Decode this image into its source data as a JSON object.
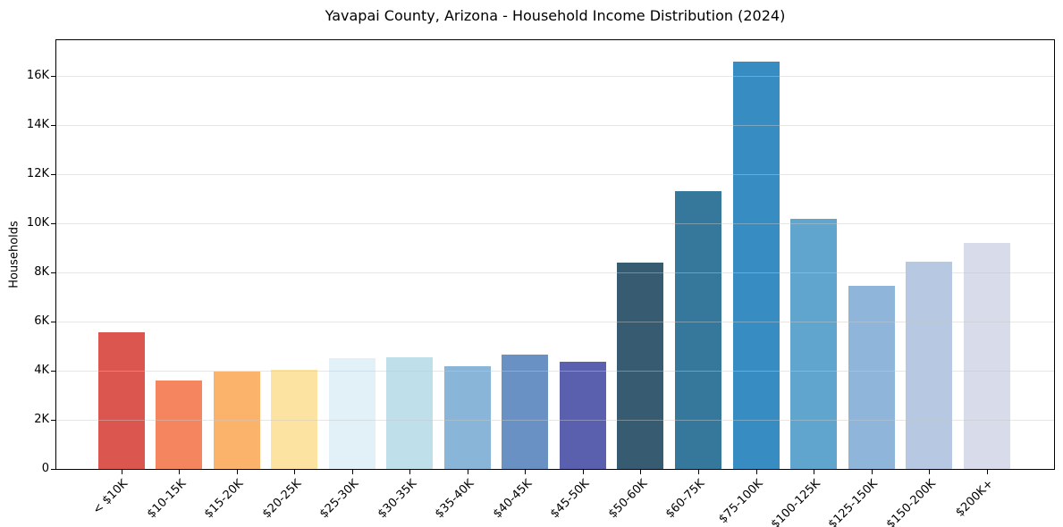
{
  "chart_data": {
    "type": "bar",
    "title": "Yavapai County, Arizona - Household Income Distribution (2024)",
    "xlabel": "",
    "ylabel": "Households",
    "categories": [
      "< $10K",
      "$10-15K",
      "$15-20K",
      "$20-25K",
      "$25-30K",
      "$30-35K",
      "$35-40K",
      "$40-45K",
      "$45-50K",
      "$50-60K",
      "$60-75K",
      "$75-100K",
      "$100-125K",
      "$125-150K",
      "$150-200K",
      "$200K+"
    ],
    "values": [
      5550,
      3600,
      3950,
      4050,
      4500,
      4550,
      4200,
      4650,
      4350,
      8400,
      11300,
      16600,
      10200,
      7450,
      8450,
      9200
    ],
    "bar_colors": [
      "#db564e",
      "#f4855f",
      "#fbb36c",
      "#fde3a1",
      "#e2f0f7",
      "#bfdfeb",
      "#89b6d8",
      "#6991c4",
      "#5a5fae",
      "#375b70",
      "#35789c",
      "#378cc1",
      "#5fa5cd",
      "#8fb6da",
      "#b6c8e2",
      "#d8dbe9"
    ],
    "ylim": [
      0,
      17460
    ],
    "ytick_values": [
      0,
      2000,
      4000,
      6000,
      8000,
      10000,
      12000,
      14000,
      16000
    ],
    "ytick_labels": [
      "0",
      "2K",
      "4K",
      "6K",
      "8K",
      "10K",
      "12K",
      "14K",
      "16K"
    ],
    "grid": "horizontal",
    "legend_position": "none",
    "colors": {
      "background": "#ffffff",
      "axis": "#000000",
      "grid": "#e8e8e8",
      "text": "#000000"
    }
  }
}
